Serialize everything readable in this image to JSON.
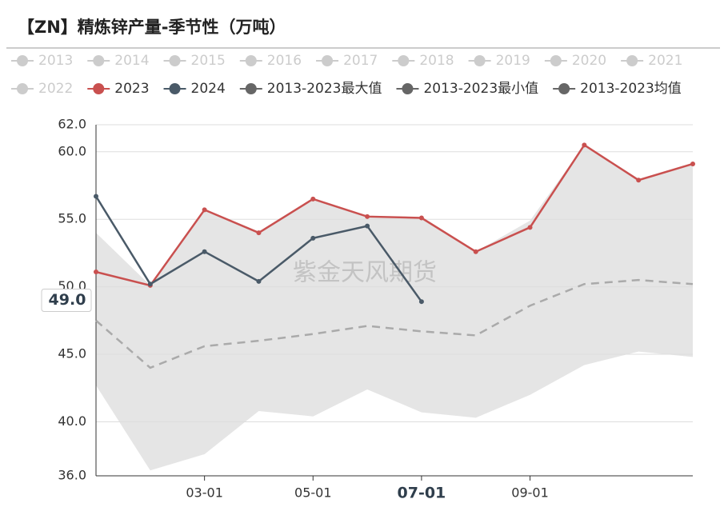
{
  "chart_data": {
    "type": "line",
    "title": "【ZN】精炼锌产量-季节性（万吨）",
    "watermark": "紫金天风期货",
    "categories": [
      null,
      null,
      "03-01",
      null,
      "05-01",
      null,
      "07-01",
      null,
      "09-01",
      null,
      null,
      null
    ],
    "highlight_category": 6,
    "ylim": [
      36,
      62
    ],
    "yticks": [
      {
        "value": 36,
        "label": "36.0"
      },
      {
        "value": 40,
        "label": "40.0"
      },
      {
        "value": 45,
        "label": "45.0"
      },
      {
        "value": 50,
        "label": "50.0"
      },
      {
        "value": 55,
        "label": "55.0"
      },
      {
        "value": 60,
        "label": "60.0"
      },
      {
        "value": 62,
        "label": "62.0"
      }
    ],
    "grid": true,
    "axis_pointer": {
      "value": 49,
      "label": "49.0"
    },
    "series": [
      {
        "name": "2013",
        "color": "#cccccc",
        "values": [
          null,
          null,
          null,
          null,
          null,
          null,
          null,
          null,
          null,
          null,
          null,
          null
        ]
      },
      {
        "name": "2014",
        "color": "#cccccc",
        "values": [
          null,
          null,
          null,
          null,
          null,
          null,
          null,
          null,
          null,
          null,
          null,
          null
        ]
      },
      {
        "name": "2015",
        "color": "#cccccc",
        "values": [
          null,
          null,
          null,
          null,
          null,
          null,
          null,
          null,
          null,
          null,
          null,
          null
        ]
      },
      {
        "name": "2016",
        "color": "#cccccc",
        "values": [
          null,
          null,
          null,
          null,
          null,
          null,
          null,
          null,
          null,
          null,
          null,
          null
        ]
      },
      {
        "name": "2017",
        "color": "#cccccc",
        "values": [
          null,
          null,
          null,
          null,
          null,
          null,
          null,
          null,
          null,
          null,
          null,
          null
        ]
      },
      {
        "name": "2018",
        "color": "#cccccc",
        "values": [
          null,
          null,
          null,
          null,
          null,
          null,
          null,
          null,
          null,
          null,
          null,
          null
        ]
      },
      {
        "name": "2019",
        "color": "#cccccc",
        "values": [
          null,
          null,
          null,
          null,
          null,
          null,
          null,
          null,
          null,
          null,
          null,
          null
        ]
      },
      {
        "name": "2020",
        "color": "#cccccc",
        "values": [
          null,
          null,
          null,
          null,
          null,
          null,
          null,
          null,
          null,
          null,
          null,
          null
        ]
      },
      {
        "name": "2021",
        "color": "#cccccc",
        "values": [
          null,
          null,
          null,
          null,
          null,
          null,
          null,
          null,
          null,
          null,
          null,
          null
        ]
      },
      {
        "name": "2022",
        "color": "#cccccc",
        "values": [
          null,
          null,
          null,
          null,
          null,
          null,
          null,
          null,
          null,
          null,
          null,
          null
        ]
      },
      {
        "name": "2023",
        "color": "#c9504f",
        "values": [
          51.1,
          50.1,
          55.7,
          54.0,
          56.5,
          55.2,
          55.1,
          52.6,
          54.4,
          60.5,
          57.9,
          59.1
        ]
      },
      {
        "name": "2024",
        "color": "#4a5a68",
        "values": [
          56.7,
          50.2,
          52.6,
          50.4,
          53.6,
          54.5,
          48.9,
          null,
          null,
          null,
          null,
          null
        ]
      },
      {
        "name": "2013-2023最大值",
        "color": "#666666",
        "style": "area-top",
        "values": [
          54.0,
          50.1,
          55.7,
          54.0,
          56.5,
          55.2,
          55.1,
          52.6,
          54.9,
          60.5,
          57.9,
          59.1
        ]
      },
      {
        "name": "2013-2023最小值",
        "color": "#666666",
        "style": "area-bottom",
        "values": [
          42.7,
          36.4,
          37.6,
          40.8,
          40.4,
          42.4,
          40.7,
          40.3,
          42.0,
          44.2,
          45.2,
          44.8
        ]
      },
      {
        "name": "2013-2023均值",
        "color": "#666666",
        "style": "dashed",
        "values": [
          47.5,
          44.0,
          45.6,
          46.0,
          46.5,
          47.1,
          46.7,
          46.4,
          48.6,
          50.2,
          50.5,
          50.2
        ]
      }
    ]
  }
}
